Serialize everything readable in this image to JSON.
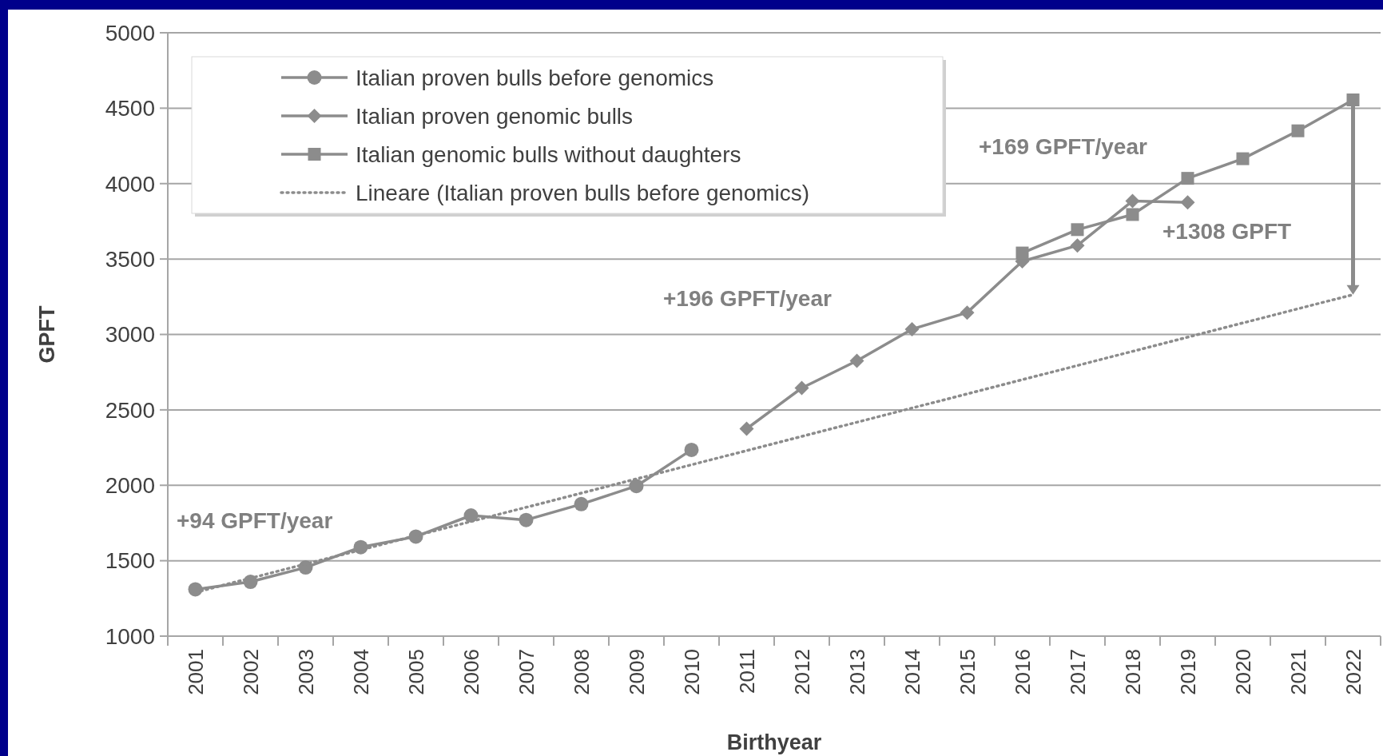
{
  "chart_data": {
    "type": "line",
    "xlabel": "Birthyear",
    "ylabel": "GPFT",
    "categories": [
      "2001",
      "2002",
      "2003",
      "2004",
      "2005",
      "2006",
      "2007",
      "2008",
      "2009",
      "2010",
      "2011",
      "2012",
      "2013",
      "2014",
      "2015",
      "2016",
      "2017",
      "2018",
      "2019",
      "2020",
      "2021",
      "2022"
    ],
    "series": [
      {
        "name": "Italian proven bulls before genomics",
        "color": "#8c8c8c",
        "marker": "circle",
        "line_style": "solid",
        "values": [
          1310,
          1360,
          1455,
          1590,
          1660,
          1800,
          1770,
          1875,
          1995,
          2235,
          null,
          null,
          null,
          null,
          null,
          null,
          null,
          null,
          null,
          null,
          null,
          null
        ]
      },
      {
        "name": "Italian proven genomic bulls",
        "color": "#8c8c8c",
        "marker": "diamond",
        "line_style": "solid",
        "values": [
          null,
          null,
          null,
          null,
          null,
          null,
          null,
          null,
          null,
          null,
          2375,
          2645,
          2825,
          3035,
          3145,
          3485,
          3590,
          3885,
          3875,
          null,
          null,
          null
        ]
      },
      {
        "name": "Italian genomic bulls without daughters",
        "color": "#8c8c8c",
        "marker": "square",
        "line_style": "solid",
        "values": [
          null,
          null,
          null,
          null,
          null,
          null,
          null,
          null,
          null,
          null,
          null,
          null,
          null,
          null,
          null,
          3540,
          3695,
          3795,
          4035,
          4165,
          4350,
          4555
        ]
      },
      {
        "name": "Lineare (Italian proven bulls before genomics)",
        "color": "#8c8c8c",
        "marker": "none",
        "line_style": "dotted",
        "values": [
          1290,
          1384,
          1478,
          1572,
          1666,
          1760,
          1854,
          1948,
          2042,
          2136,
          2230,
          2324,
          2418,
          2512,
          2606,
          2700,
          2794,
          2888,
          2982,
          3076,
          3170,
          3264
        ]
      }
    ],
    "ylim": [
      1000,
      5000
    ],
    "yticks": [
      1000,
      1500,
      2000,
      2500,
      3000,
      3500,
      4000,
      4500,
      5000
    ],
    "grid": "y",
    "legend": "top left",
    "annotations": [
      "+94 GPFT/year",
      "+196 GPFT/year",
      "+169 GPFT/year",
      "+1308 GPFT"
    ]
  }
}
